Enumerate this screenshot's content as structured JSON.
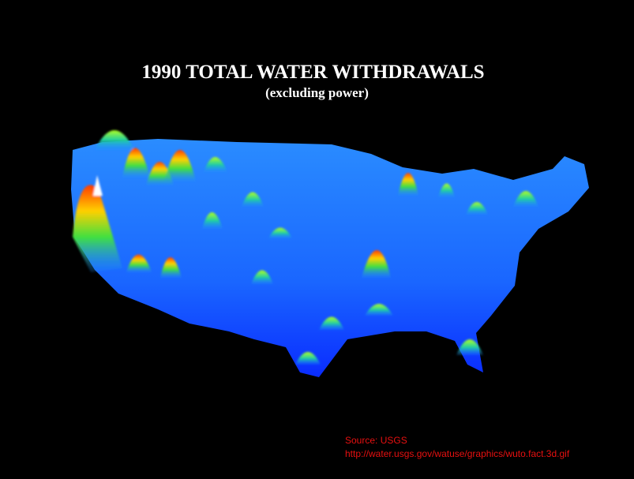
{
  "title": "1990 TOTAL WATER WITHDRAWALS",
  "subtitle": "(excluding power)",
  "source": {
    "line1": "Source: USGS",
    "line2": "http://water.usgs.gov/watuse/graphics/wuto.fact.3d.gif"
  }
}
